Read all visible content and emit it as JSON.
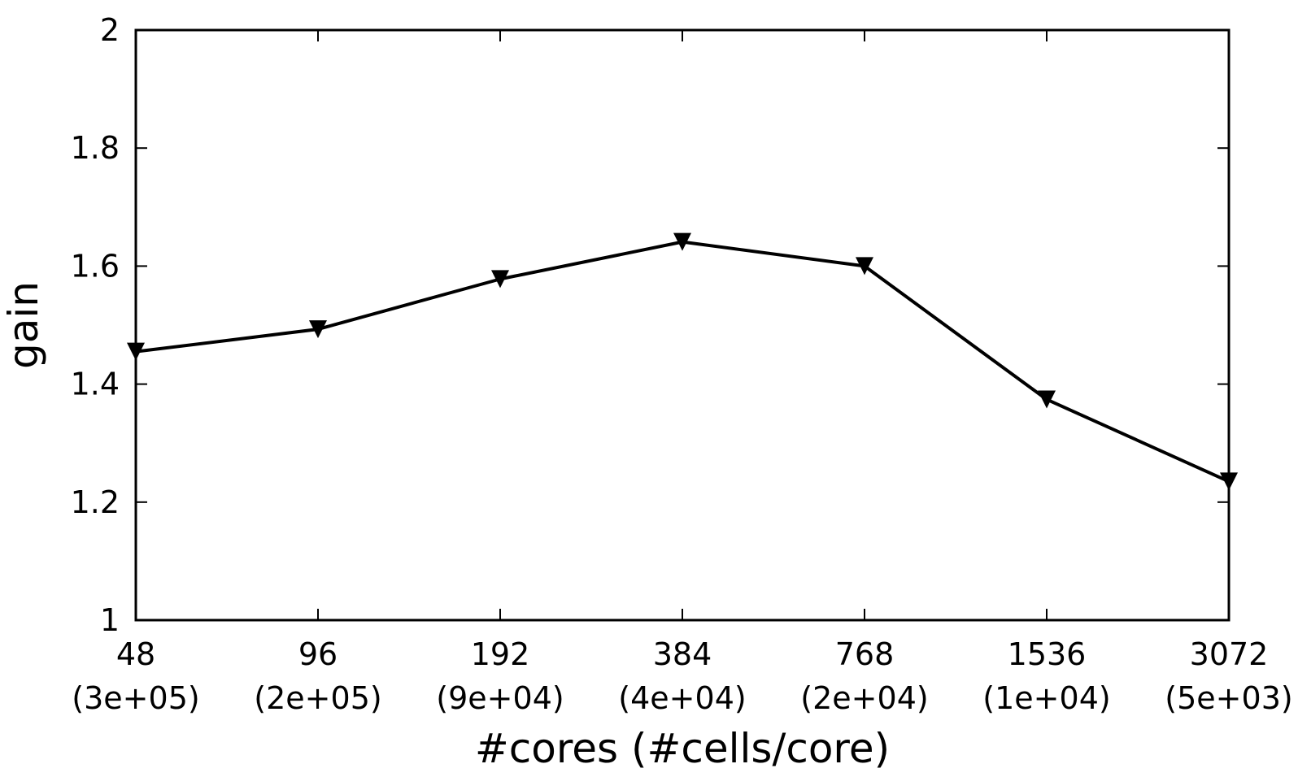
{
  "chart_data": {
    "type": "line",
    "title": "",
    "xlabel": "#cores (#cells/core)",
    "ylabel": "gain",
    "categories": [
      "48",
      "96",
      "192",
      "384",
      "768",
      "1536",
      "3072"
    ],
    "category_sublabels": [
      "(3e+05)",
      "(2e+05)",
      "(9e+04)",
      "(4e+04)",
      "(2e+04)",
      "(1e+04)",
      "(5e+03)"
    ],
    "series": [
      {
        "values": [
          1.455,
          1.493,
          1.578,
          1.641,
          1.6,
          1.374,
          1.235
        ]
      }
    ],
    "ylim": [
      1,
      2
    ],
    "yticks": [
      1,
      1.2,
      1.4,
      1.6,
      1.8,
      2
    ],
    "ytick_labels": [
      "1",
      "1.2",
      "1.4",
      "1.6",
      "1.8",
      "2"
    ],
    "marker": "triangle-down",
    "grid": false,
    "legend": "none",
    "colors": {
      "line": "#000000",
      "marker": "#000000",
      "frame": "#000000"
    }
  }
}
